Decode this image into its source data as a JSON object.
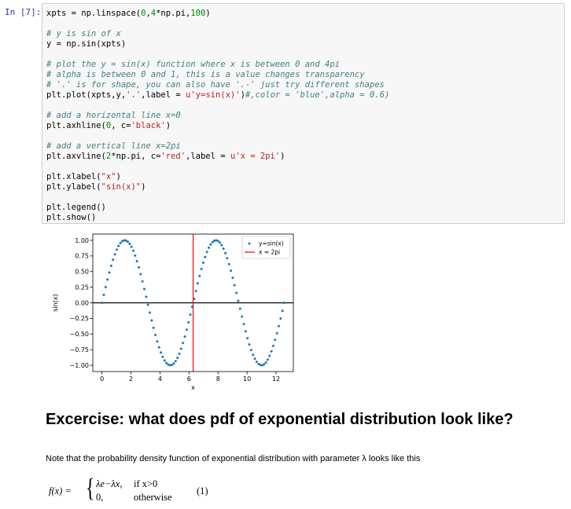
{
  "cell": {
    "prompt": "In [7]:",
    "code_lines": [
      [
        {
          "t": "xpts = np.linspace(",
          "c": ""
        },
        {
          "t": "0",
          "c": "num"
        },
        {
          "t": ",",
          "c": ""
        },
        {
          "t": "4",
          "c": "num"
        },
        {
          "t": "*np.pi,",
          "c": ""
        },
        {
          "t": "100",
          "c": "num"
        },
        {
          "t": ")",
          "c": ""
        }
      ],
      [],
      [
        {
          "t": "# y is sin of x",
          "c": "comment"
        }
      ],
      [
        {
          "t": "y = np.sin(xpts)",
          "c": ""
        }
      ],
      [],
      [
        {
          "t": "# plot the y = sin(x) function where x is between 0 and 4pi",
          "c": "comment"
        }
      ],
      [
        {
          "t": "# alpha is between 0 and 1, this is a value changes transparency",
          "c": "comment"
        }
      ],
      [
        {
          "t": "# '.' is for shape, you can also have '.-' just try different shapes",
          "c": "comment"
        }
      ],
      [
        {
          "t": "plt.plot(xpts,y,",
          "c": ""
        },
        {
          "t": "'.'",
          "c": "string"
        },
        {
          "t": ",label = ",
          "c": ""
        },
        {
          "t": "u'y=sin(x)'",
          "c": "string"
        },
        {
          "t": ")",
          "c": ""
        },
        {
          "t": "#,color = 'blue',alpha = 0.6)",
          "c": "comment"
        }
      ],
      [],
      [
        {
          "t": "# add a horizontal line x=0",
          "c": "comment"
        }
      ],
      [
        {
          "t": "plt.axhline(",
          "c": ""
        },
        {
          "t": "0",
          "c": "num"
        },
        {
          "t": ", c=",
          "c": ""
        },
        {
          "t": "'black'",
          "c": "string"
        },
        {
          "t": ")",
          "c": ""
        }
      ],
      [],
      [
        {
          "t": "# add a vertical line x=2pi",
          "c": "comment"
        }
      ],
      [
        {
          "t": "plt.axvline(",
          "c": ""
        },
        {
          "t": "2",
          "c": "num"
        },
        {
          "t": "*np.pi, c=",
          "c": ""
        },
        {
          "t": "'red'",
          "c": "string"
        },
        {
          "t": ",label = ",
          "c": ""
        },
        {
          "t": "u'x = 2pi'",
          "c": "string"
        },
        {
          "t": ")",
          "c": ""
        }
      ],
      [],
      [
        {
          "t": "plt.xlabel(",
          "c": ""
        },
        {
          "t": "\"x\"",
          "c": "string"
        },
        {
          "t": ")",
          "c": ""
        }
      ],
      [
        {
          "t": "plt.ylabel(",
          "c": ""
        },
        {
          "t": "\"sin(x)\"",
          "c": "string"
        },
        {
          "t": ")",
          "c": ""
        }
      ],
      [],
      [
        {
          "t": "plt.legend()",
          "c": ""
        }
      ],
      [
        {
          "t": "plt.show()",
          "c": ""
        }
      ]
    ]
  },
  "chart_data": {
    "type": "scatter",
    "function": "y = sin(x)",
    "x_range": [
      0,
      12.566
    ],
    "n_points": 100,
    "series": [
      {
        "name": "y=sin(x)",
        "marker": ".",
        "color": "#1f77b4"
      }
    ],
    "hlines": [
      {
        "y": 0,
        "color": "#000000"
      }
    ],
    "vlines": [
      {
        "name": "x = 2pi",
        "x": 6.2832,
        "color": "#ff0000"
      }
    ],
    "xlabel": "x",
    "ylabel": "sin(x)",
    "xlim": [
      -0.63,
      13.19
    ],
    "ylim": [
      -1.1,
      1.1
    ],
    "xticks": [
      "0",
      "2",
      "4",
      "6",
      "8",
      "10",
      "12"
    ],
    "xtick_values": [
      0,
      2,
      4,
      6,
      8,
      10,
      12
    ],
    "yticks": [
      "1.00",
      "0.75",
      "0.50",
      "0.25",
      "0.00",
      "−0.25",
      "−0.50",
      "−0.75",
      "−1.00"
    ],
    "ytick_values": [
      1,
      0.75,
      0.5,
      0.25,
      0,
      -0.25,
      -0.5,
      -0.75,
      -1
    ],
    "legend": {
      "placement": "top-right",
      "entries": [
        "y=sin(x)",
        "x = 2pi"
      ]
    },
    "grid": false
  },
  "markdown": {
    "heading": "Excercise: what does pdf of exponential distribution look like?",
    "paragraph": "Note that the probability density function of exponential distribution with parameter λ looks like this",
    "formula": {
      "lhs": "f(x) =",
      "brace": "{",
      "case1": "λe−λx,",
      "cond1": "if x>0",
      "case2": "0,",
      "cond2": "otherwise",
      "number": "(1)"
    }
  }
}
